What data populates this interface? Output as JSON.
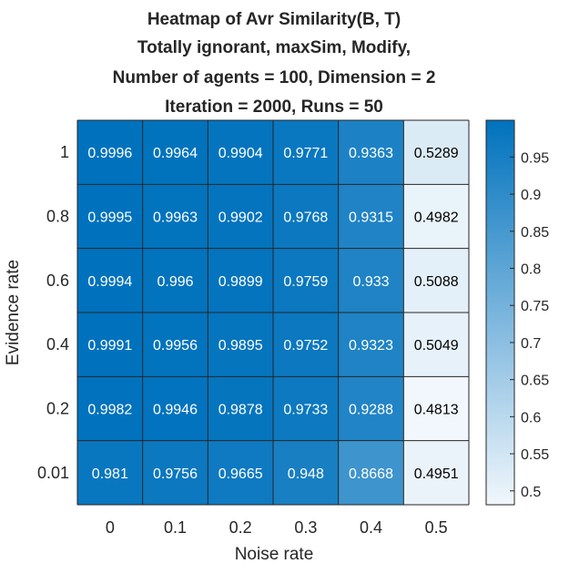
{
  "chart_data": {
    "type": "heatmap",
    "title": [
      "Heatmap of Avr Similarity(B, T)",
      "Totally ignorant, maxSim, Modify,",
      "Number of agents = 100, Dimension = 2",
      "Iteration = 2000, Runs = 50"
    ],
    "xlabel": "Noise rate",
    "ylabel": "Evidence rate",
    "x_categories": [
      "0",
      "0.1",
      "0.2",
      "0.3",
      "0.4",
      "0.5"
    ],
    "y_categories": [
      "1",
      "0.8",
      "0.6",
      "0.4",
      "0.2",
      "0.01"
    ],
    "values": [
      [
        0.9996,
        0.9964,
        0.9904,
        0.9771,
        0.9363,
        0.5289
      ],
      [
        0.9995,
        0.9963,
        0.9902,
        0.9768,
        0.9315,
        0.4982
      ],
      [
        0.9994,
        0.996,
        0.9899,
        0.9759,
        0.933,
        0.5088
      ],
      [
        0.9991,
        0.9956,
        0.9895,
        0.9752,
        0.9323,
        0.5049
      ],
      [
        0.9982,
        0.9946,
        0.9878,
        0.9733,
        0.9288,
        0.4813
      ],
      [
        0.981,
        0.9756,
        0.9665,
        0.948,
        0.8668,
        0.4951
      ]
    ],
    "colorbar": {
      "range": [
        0.4813,
        0.9996
      ],
      "ticks": [
        0.5,
        0.55,
        0.6,
        0.65,
        0.7,
        0.75,
        0.8,
        0.85,
        0.9,
        0.95
      ],
      "tick_labels": [
        "0.5",
        "0.55",
        "0.6",
        "0.65",
        "0.7",
        "0.75",
        "0.8",
        "0.85",
        "0.9",
        "0.95"
      ],
      "low_color": "#f1f7fc",
      "high_color": "#0072bd"
    },
    "colors": {
      "light_text": "#ffffff",
      "dark_text": "#000000",
      "axis_text": "#262626",
      "grid_line": "#262626"
    }
  }
}
